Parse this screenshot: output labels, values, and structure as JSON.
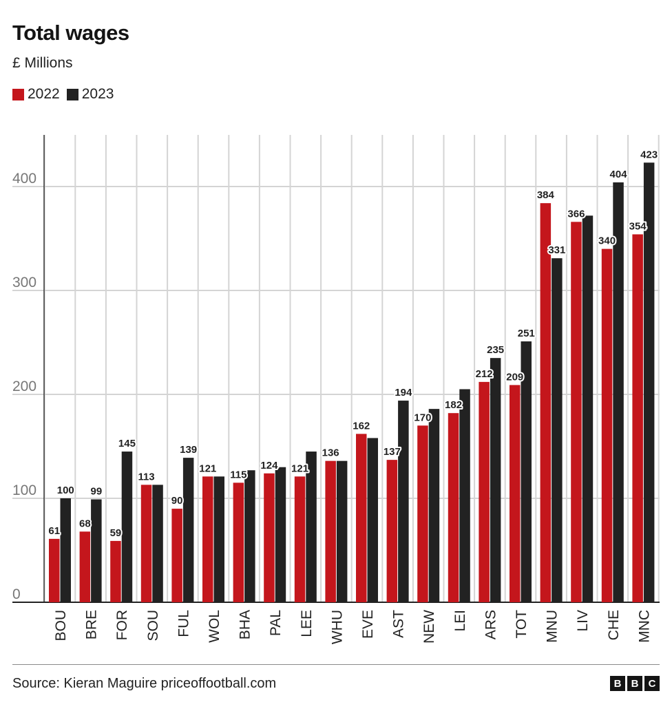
{
  "header": {
    "title": "Total wages",
    "subtitle": "£ Millions"
  },
  "footer": {
    "source": "Source: Kieran Maguire priceoffootball.com",
    "logo_letters": [
      "B",
      "B",
      "C"
    ]
  },
  "chart_data": {
    "type": "bar",
    "title": "Total wages",
    "subtitle": "£ Millions",
    "xlabel": "",
    "ylabel": "",
    "ylim": [
      0,
      450
    ],
    "yticks": [
      0,
      100,
      200,
      300,
      400
    ],
    "grid": true,
    "legend": "top-left",
    "categories": [
      "BOU",
      "BRE",
      "FOR",
      "SOU",
      "FUL",
      "WOL",
      "BHA",
      "PAL",
      "LEE",
      "WHU",
      "EVE",
      "AST",
      "NEW",
      "LEI",
      "ARS",
      "TOT",
      "MNU",
      "LIV",
      "CHE",
      "MNC"
    ],
    "series": [
      {
        "name": "2022",
        "color": "#c4161c",
        "values": [
          61,
          68,
          59,
          113,
          90,
          121,
          115,
          124,
          121,
          136,
          162,
          137,
          170,
          182,
          212,
          209,
          384,
          366,
          340,
          354
        ],
        "labels": [
          "61",
          "68",
          "59",
          "113",
          "90",
          "121",
          "115",
          "124",
          "121",
          "136",
          "162",
          "137",
          "170",
          "182",
          "212",
          "209",
          "384",
          "366",
          "340",
          "354"
        ]
      },
      {
        "name": "2023",
        "color": "#222222",
        "values": [
          100,
          99,
          145,
          113,
          139,
          121,
          127,
          130,
          145,
          136,
          158,
          194,
          186,
          205,
          235,
          251,
          331,
          372,
          404,
          423
        ],
        "labels": [
          "100",
          "99",
          "145",
          "",
          "139",
          "",
          "",
          "",
          "",
          "",
          "",
          "194",
          "",
          "",
          "235",
          "251",
          "331",
          "",
          "404",
          "423"
        ]
      }
    ]
  }
}
